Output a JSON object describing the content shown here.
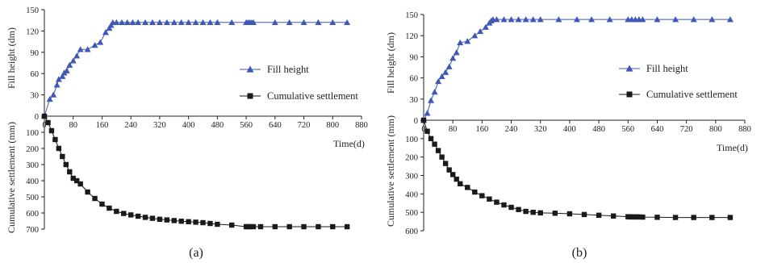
{
  "colors": {
    "fill_height": "#3f57b6",
    "settlement": "#1a1a1a",
    "axis": "#222222"
  },
  "chart_data": [
    {
      "panel_label": "(a)",
      "type": "line",
      "xlabel": "Time(d)",
      "x_ticks": [
        "0",
        "80",
        "160",
        "240",
        "320",
        "400",
        "480",
        "560",
        "640",
        "720",
        "800",
        "880"
      ],
      "xlim": [
        0,
        880
      ],
      "upper": {
        "ylabel": "Fill height (dm)",
        "ylim": [
          0,
          150
        ],
        "y_ticks": [
          "0",
          "30",
          "60",
          "90",
          "120",
          "150"
        ]
      },
      "lower": {
        "ylabel": "Cumulative settlement (mm)",
        "ylim": [
          0,
          700
        ],
        "y_ticks": [
          "100",
          "200",
          "300",
          "400",
          "500",
          "600",
          "700"
        ]
      },
      "legend": [
        "Fill height",
        "Cumulative settlement"
      ],
      "series": [
        {
          "name": "Fill height",
          "marker": "triangle",
          "x": [
            0,
            15,
            25,
            35,
            40,
            50,
            55,
            62,
            70,
            80,
            90,
            100,
            120,
            140,
            155,
            170,
            180,
            185,
            190,
            200,
            215,
            230,
            245,
            260,
            280,
            300,
            320,
            340,
            360,
            380,
            400,
            420,
            440,
            460,
            480,
            520,
            560,
            565,
            570,
            575,
            580,
            640,
            680,
            720,
            760,
            800,
            840
          ],
          "y": [
            0,
            24,
            30,
            44,
            52,
            56,
            61,
            64,
            72,
            78,
            85,
            94,
            94,
            100,
            104,
            118,
            124,
            128,
            132,
            132,
            132,
            132,
            132,
            132,
            132,
            132,
            132,
            132,
            132,
            132,
            132,
            132,
            132,
            132,
            132,
            132,
            132,
            132,
            132,
            132,
            132,
            132,
            132,
            132,
            132,
            132,
            132
          ]
        },
        {
          "name": "Cumulative settlement",
          "marker": "square",
          "x": [
            0,
            10,
            20,
            30,
            40,
            50,
            60,
            70,
            80,
            90,
            100,
            120,
            140,
            160,
            180,
            200,
            220,
            240,
            260,
            280,
            300,
            320,
            340,
            360,
            380,
            400,
            420,
            440,
            460,
            480,
            520,
            560,
            565,
            570,
            580,
            600,
            640,
            680,
            720,
            760,
            800,
            840
          ],
          "y": [
            0,
            40,
            90,
            145,
            200,
            250,
            300,
            345,
            385,
            400,
            420,
            470,
            510,
            545,
            570,
            590,
            603,
            612,
            620,
            627,
            633,
            639,
            643,
            647,
            651,
            654,
            657,
            660,
            665,
            670,
            675,
            685,
            685,
            685,
            685,
            685,
            685,
            685,
            685,
            685,
            685,
            685
          ]
        }
      ]
    },
    {
      "panel_label": "(b)",
      "type": "line",
      "xlabel": "Time(d)",
      "x_ticks": [
        "0",
        "80",
        "160",
        "240",
        "320",
        "400",
        "480",
        "560",
        "640",
        "720",
        "800",
        "880"
      ],
      "xlim": [
        0,
        880
      ],
      "upper": {
        "ylabel": "Fill height (dm)",
        "ylim": [
          0,
          150
        ],
        "y_ticks": [
          "0",
          "30",
          "60",
          "90",
          "120",
          "150"
        ]
      },
      "lower": {
        "ylabel": "Cumulative settlement (mm)",
        "ylim": [
          0,
          600
        ],
        "y_ticks": [
          "100",
          "200",
          "300",
          "400",
          "500",
          "600"
        ]
      },
      "legend": [
        "Fill height",
        "Cumulative settlement"
      ],
      "series": [
        {
          "name": "Fill height",
          "marker": "triangle",
          "x": [
            0,
            10,
            20,
            30,
            40,
            50,
            60,
            70,
            80,
            90,
            100,
            120,
            140,
            155,
            170,
            180,
            185,
            190,
            200,
            220,
            240,
            260,
            280,
            300,
            320,
            370,
            420,
            460,
            510,
            560,
            570,
            580,
            590,
            600,
            640,
            690,
            740,
            790,
            840
          ],
          "y": [
            0,
            10,
            28,
            40,
            55,
            62,
            68,
            76,
            88,
            96,
            110,
            112,
            120,
            126,
            132,
            138,
            141,
            143,
            143,
            143,
            143,
            143,
            143,
            143,
            143,
            143,
            143,
            143,
            143,
            143,
            143,
            143,
            143,
            143,
            143,
            143,
            143,
            143,
            143
          ]
        },
        {
          "name": "Cumulative settlement",
          "marker": "square",
          "x": [
            0,
            10,
            20,
            30,
            40,
            50,
            60,
            70,
            80,
            90,
            100,
            120,
            140,
            160,
            180,
            200,
            220,
            240,
            260,
            280,
            300,
            320,
            360,
            400,
            440,
            480,
            520,
            560,
            565,
            570,
            575,
            580,
            585,
            590,
            600,
            640,
            690,
            740,
            790,
            840
          ],
          "y": [
            0,
            60,
            100,
            130,
            165,
            200,
            235,
            270,
            295,
            320,
            345,
            365,
            390,
            410,
            428,
            445,
            460,
            473,
            485,
            495,
            500,
            503,
            505,
            508,
            512,
            516,
            520,
            524,
            525,
            525,
            525,
            525,
            525,
            525,
            526,
            527,
            528,
            528,
            528,
            528
          ]
        }
      ]
    }
  ]
}
